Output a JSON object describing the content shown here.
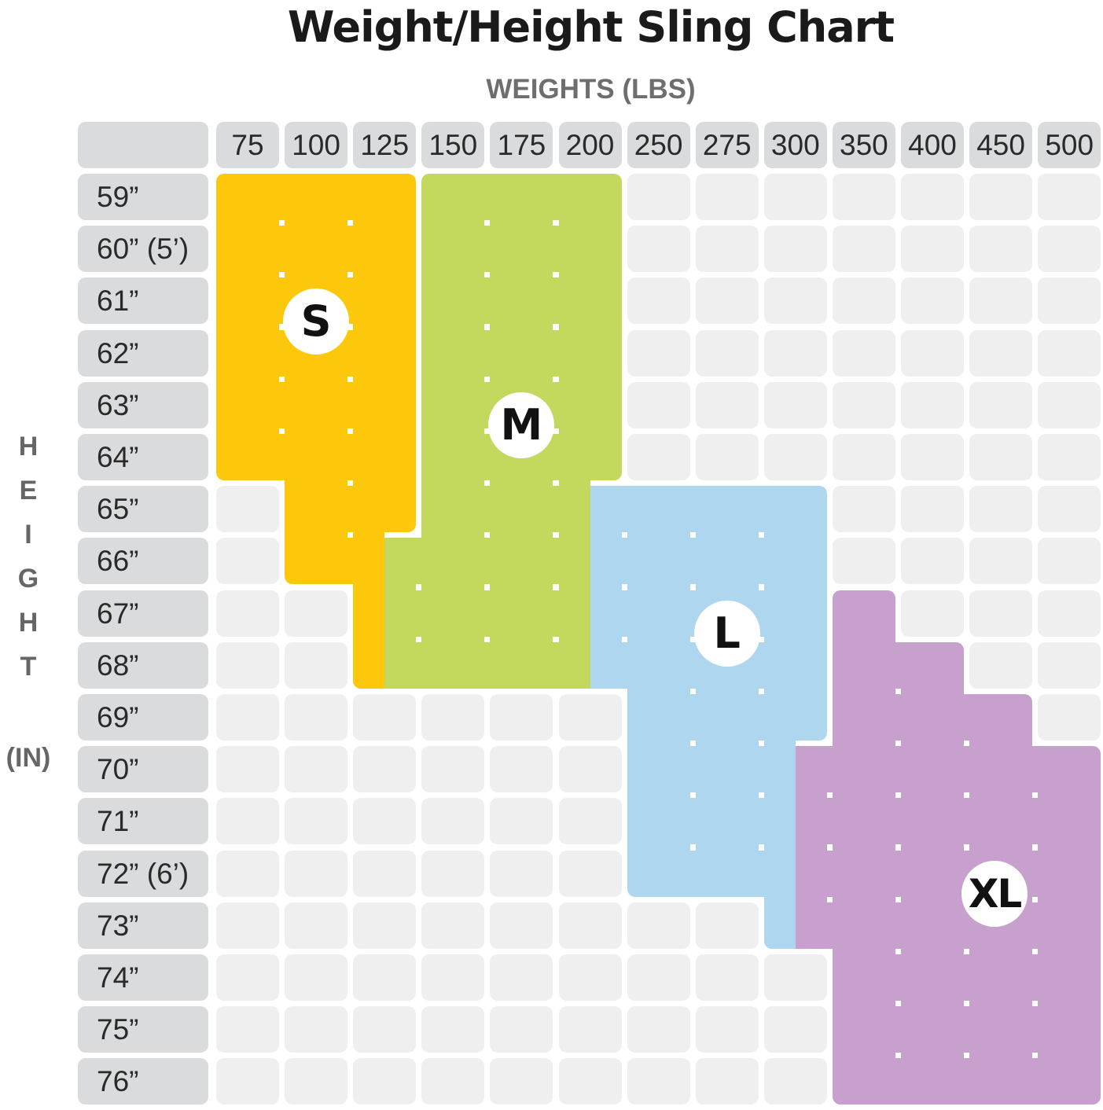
{
  "chart_data": {
    "type": "heatmap",
    "title": "Weight/Height Sling Chart",
    "xlabel": "WEIGHTS (LBS)",
    "ylabel_letters": [
      "H",
      "E",
      "I",
      "G",
      "H",
      "T"
    ],
    "ylabel_unit": "(IN)",
    "x": [
      "75",
      "100",
      "125",
      "150",
      "175",
      "200",
      "250",
      "275",
      "300",
      "350",
      "400",
      "450",
      "500"
    ],
    "y": [
      "59”",
      "60” (5’)",
      "61”",
      "62”",
      "63”",
      "64”",
      "65”",
      "66”",
      "67”",
      "68”",
      "69”",
      "70”",
      "71”",
      "72” (6’)",
      "73”",
      "74”",
      "75”",
      "76”"
    ],
    "sizes": [
      {
        "name": "S",
        "color": "#fdc80b"
      },
      {
        "name": "M",
        "color": "#c3d95e"
      },
      {
        "name": "L",
        "color": "#aed7ef"
      },
      {
        "name": "XL",
        "color": "#c7a0cd"
      }
    ],
    "empty_color": "#efefef",
    "header_color": "#dadbdc",
    "cells": [
      [
        "S",
        "S",
        "S",
        "M",
        "M",
        "M",
        "",
        "",
        "",
        "",
        "",
        "",
        ""
      ],
      [
        "S",
        "S",
        "S",
        "M",
        "M",
        "M",
        "",
        "",
        "",
        "",
        "",
        "",
        ""
      ],
      [
        "S",
        "S",
        "S",
        "M",
        "M",
        "M",
        "",
        "",
        "",
        "",
        "",
        "",
        ""
      ],
      [
        "S",
        "S",
        "S",
        "M",
        "M",
        "M",
        "",
        "",
        "",
        "",
        "",
        "",
        ""
      ],
      [
        "S",
        "S",
        "S",
        "M",
        "M",
        "M",
        "",
        "",
        "",
        "",
        "",
        "",
        ""
      ],
      [
        "S",
        "S",
        "S",
        "M",
        "M",
        "M",
        "",
        "",
        "",
        "",
        "",
        "",
        ""
      ],
      [
        "",
        "S",
        "S",
        "M",
        "M",
        "M/L",
        "L",
        "L",
        "L",
        "",
        "",
        "",
        ""
      ],
      [
        "",
        "S",
        "S/M",
        "M",
        "M",
        "M/L",
        "L",
        "L",
        "L",
        "",
        "",
        "",
        ""
      ],
      [
        "",
        "",
        "S/M",
        "M",
        "M",
        "M/L",
        "L",
        "L",
        "L",
        "XL",
        "",
        "",
        ""
      ],
      [
        "",
        "",
        "S/M",
        "M",
        "M",
        "M/L",
        "L",
        "L",
        "L",
        "XL",
        "XL",
        "",
        ""
      ],
      [
        "",
        "",
        "",
        "",
        "",
        "",
        "L",
        "L",
        "L",
        "XL",
        "XL",
        "XL",
        ""
      ],
      [
        "",
        "",
        "",
        "",
        "",
        "",
        "L",
        "L",
        "L/XL",
        "XL",
        "XL",
        "XL",
        "XL"
      ],
      [
        "",
        "",
        "",
        "",
        "",
        "",
        "L",
        "L",
        "L/XL",
        "XL",
        "XL",
        "XL",
        "XL"
      ],
      [
        "",
        "",
        "",
        "",
        "",
        "",
        "L",
        "L",
        "L/XL",
        "XL",
        "XL",
        "XL",
        "XL"
      ],
      [
        "",
        "",
        "",
        "",
        "",
        "",
        "",
        "",
        "L/XL",
        "XL",
        "XL",
        "XL",
        "XL"
      ],
      [
        "",
        "",
        "",
        "",
        "",
        "",
        "",
        "",
        "",
        "XL",
        "XL",
        "XL",
        "XL"
      ],
      [
        "",
        "",
        "",
        "",
        "",
        "",
        "",
        "",
        "",
        "XL",
        "XL",
        "XL",
        "XL"
      ],
      [
        "",
        "",
        "",
        "",
        "",
        "",
        "",
        "",
        "",
        "XL",
        "XL",
        "XL",
        "XL"
      ]
    ],
    "badges": [
      {
        "size": "S",
        "col": 1,
        "row": 2.5
      },
      {
        "size": "M",
        "col": 4,
        "row": 4.5
      },
      {
        "size": "L",
        "col": 7,
        "row": 8.5
      },
      {
        "size": "XL",
        "col": 11,
        "row": 13.5
      }
    ],
    "grid": false,
    "legend": "none"
  }
}
